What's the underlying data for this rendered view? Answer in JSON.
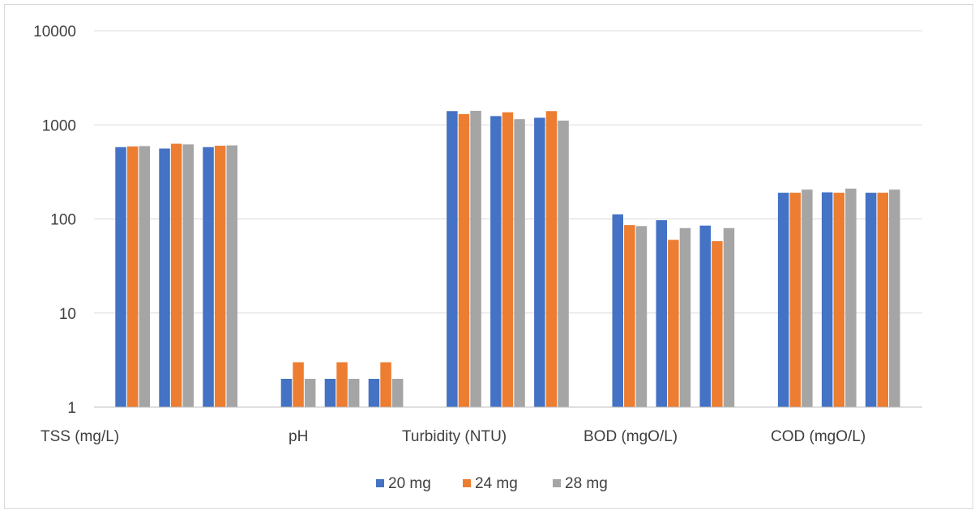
{
  "chart_data": {
    "type": "bar",
    "title": "",
    "xlabel": "",
    "ylabel": "",
    "yscale": "log",
    "ylim": [
      1,
      10000
    ],
    "grid": true,
    "legend_position": "bottom",
    "yticks": [
      "1",
      "10",
      "100",
      "1000",
      "10000"
    ],
    "categories": [
      "TSS (mg/L)",
      "pH",
      "Turbidity (NTU)",
      "BOD (mgO/L)",
      "COD (mgO/L)"
    ],
    "groups_per_category": 3,
    "series": [
      {
        "name": "20 mg",
        "color": "#4472c4",
        "values": [
          [
            580,
            560,
            580
          ],
          [
            2,
            2,
            2
          ],
          [
            1400,
            1240,
            1190
          ],
          [
            112,
            97,
            85
          ],
          [
            190,
            192,
            190
          ]
        ]
      },
      {
        "name": "24 mg",
        "color": "#ed7d31",
        "values": [
          [
            590,
            630,
            600
          ],
          [
            3,
            3,
            3
          ],
          [
            1300,
            1360,
            1400
          ],
          [
            86,
            60,
            58
          ],
          [
            190,
            190,
            190
          ]
        ]
      },
      {
        "name": "28 mg",
        "color": "#a5a5a5",
        "values": [
          [
            595,
            620,
            605
          ],
          [
            2,
            2,
            2
          ],
          [
            1410,
            1150,
            1110
          ],
          [
            84,
            80,
            80
          ],
          [
            205,
            210,
            205
          ]
        ]
      }
    ]
  }
}
